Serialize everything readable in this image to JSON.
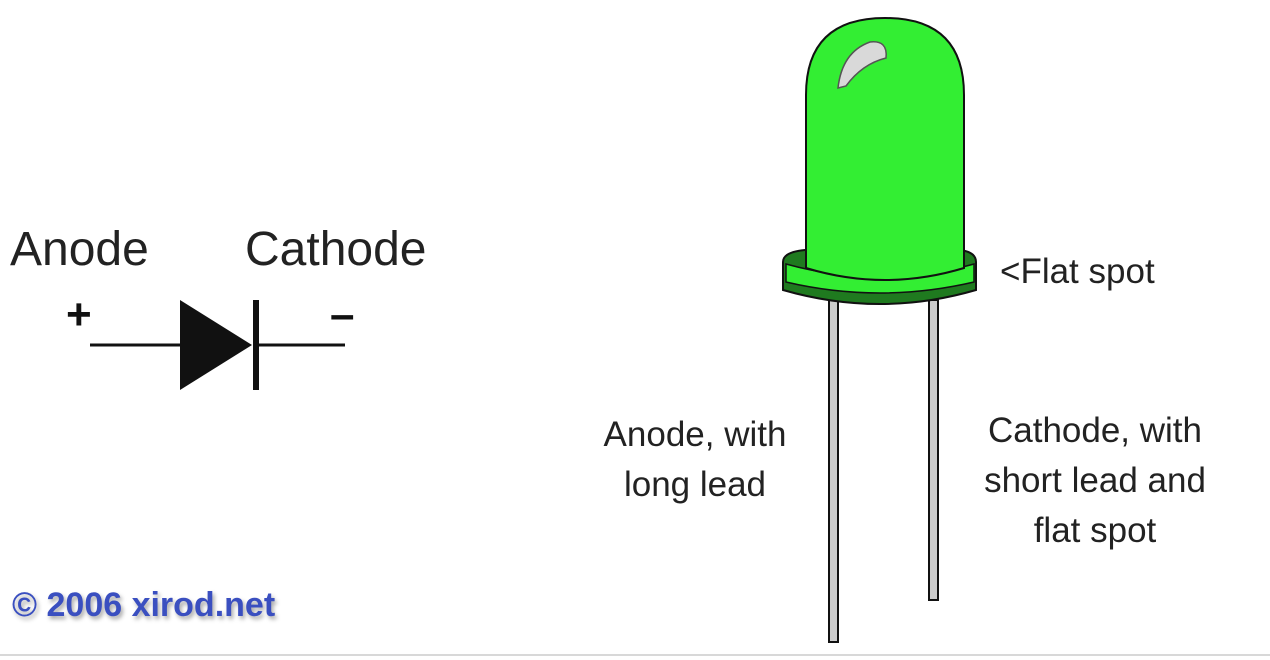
{
  "symbol": {
    "anode_label": "Anode",
    "cathode_label": "Cathode",
    "plus_sign": "+",
    "minus_sign": "–"
  },
  "led": {
    "body_color": "#33ee33",
    "body_outline": "#111111",
    "rim_color": "#1f7a1f",
    "highlight_color": "#d9d9d9",
    "lead_color": "#cccccc",
    "flat_spot_label": "<Flat spot",
    "anode_callout": [
      "Anode, with",
      "long lead"
    ],
    "cathode_callout": [
      "Cathode, with",
      "short lead and",
      "flat spot"
    ]
  },
  "copyright": "© 2006 xirod.net"
}
